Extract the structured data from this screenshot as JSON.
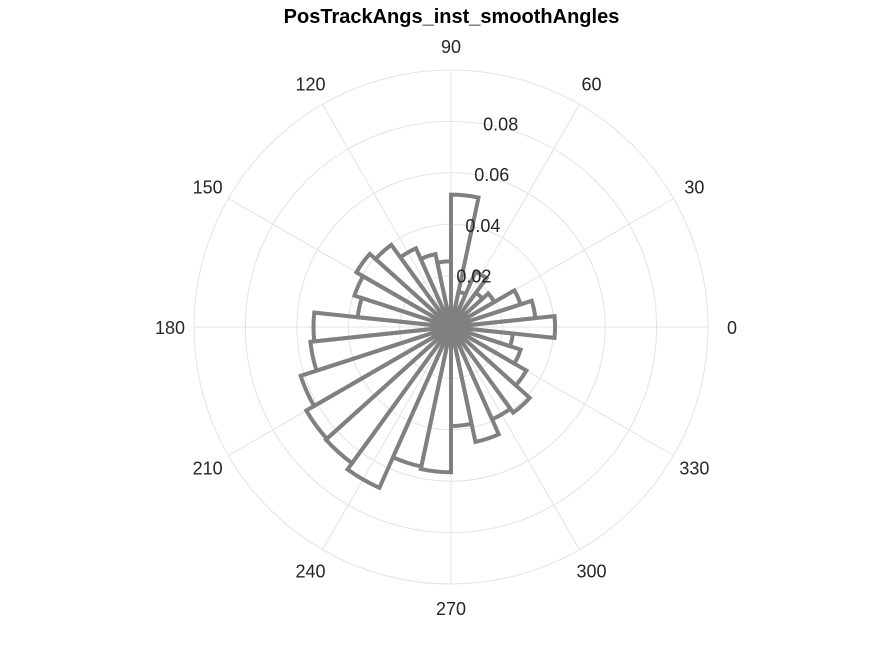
{
  "chart_data": {
    "type": "polar-histogram",
    "title": "PosTrackAngs_inst_smoothAngles",
    "theta_ticks": [
      0,
      30,
      60,
      90,
      120,
      150,
      180,
      210,
      240,
      270,
      300,
      330
    ],
    "theta_tick_labels": [
      "0",
      "30",
      "60",
      "90",
      "120",
      "150",
      "180",
      "210",
      "240",
      "270",
      "300",
      "330"
    ],
    "r_ticks": [
      0.02,
      0.04,
      0.06,
      0.08
    ],
    "r_tick_labels": [
      "0.02",
      "0.04",
      "0.06",
      "0.08"
    ],
    "r_tick_angle": 80,
    "rlim": [
      0,
      0.1
    ],
    "bin_width_deg": 12,
    "bin_centers_deg": [
      0,
      12,
      24,
      36,
      48,
      60,
      72,
      84,
      96,
      108,
      120,
      132,
      144,
      156,
      168,
      180,
      192,
      204,
      216,
      228,
      240,
      252,
      264,
      276,
      288,
      300,
      312,
      324,
      336,
      348
    ],
    "values": [
      0.0405,
      0.033,
      0.0285,
      0.0195,
      0.0165,
      0.0235,
      0.014,
      0.0515,
      0.0256,
      0.029,
      0.0335,
      0.0395,
      0.0425,
      0.0395,
      0.0365,
      0.0535,
      0.055,
      0.0615,
      0.065,
      0.0655,
      0.0685,
      0.0555,
      0.0565,
      0.0385,
      0.0457,
      0.0393,
      0.0412,
      0.0339,
      0.0285,
      0.0242
    ],
    "edge_color": "#808080",
    "grid": true
  }
}
